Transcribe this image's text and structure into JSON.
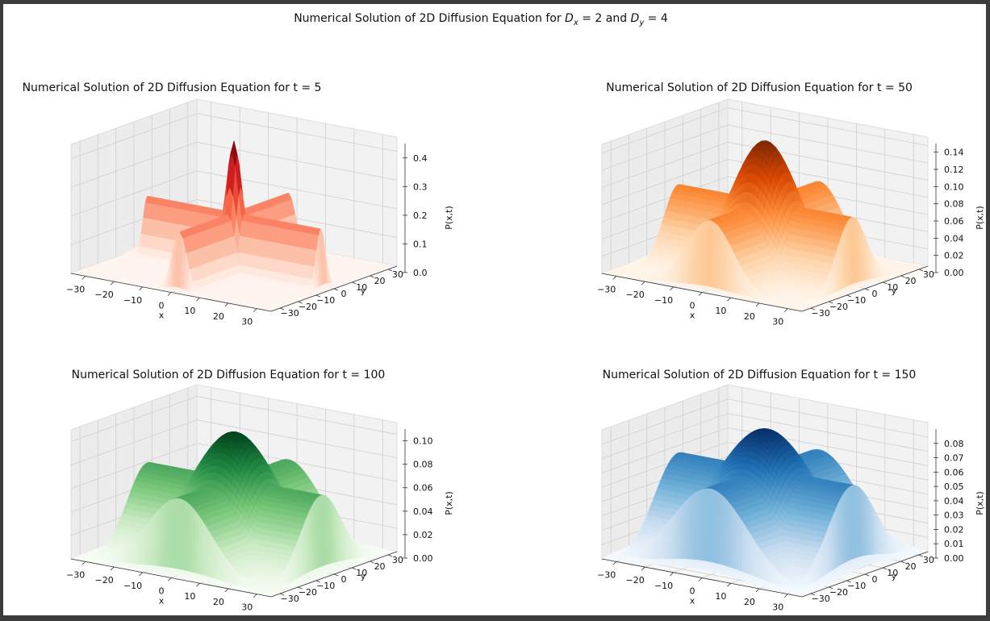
{
  "figure": {
    "suptitle_prefix": "Numerical Solution of 2D Diffusion Equation for ",
    "suptitle_dx_sym": "D",
    "suptitle_dx_sub": "x",
    "suptitle_mid": " = 2 and ",
    "suptitle_dy_sym": "D",
    "suptitle_dy_sub": "y",
    "suptitle_end": " = 4"
  },
  "chart_data": [
    {
      "type": "surface3d",
      "title": "Numerical Solution of 2D Diffusion Equation for t = 5",
      "t": 5,
      "colormap": "Reds",
      "colors": [
        "#fff5f0",
        "#fcbba1",
        "#fb6a4a",
        "#cb181d",
        "#67000d"
      ],
      "xlabel": "x",
      "ylabel": "y",
      "zlabel": "P(x,t)",
      "xlim": [
        -35,
        35
      ],
      "ylim": [
        -35,
        35
      ],
      "zlim": [
        0,
        0.45
      ],
      "xticks": [
        "−30",
        "−20",
        "−10",
        "0",
        "10",
        "20",
        "30"
      ],
      "yticks": [
        "−30",
        "−20",
        "−10",
        "0",
        "10",
        "20",
        "30"
      ],
      "zticks": [
        "0.0",
        "0.1",
        "0.2",
        "0.3",
        "0.4"
      ],
      "peak": 0.45,
      "ridge_height": 0.2,
      "peak_width": 2.5,
      "ridge_width": 2.5
    },
    {
      "type": "surface3d",
      "title": "Numerical Solution of 2D Diffusion Equation for t = 50",
      "t": 50,
      "colormap": "Oranges",
      "colors": [
        "#fff5eb",
        "#fdd0a2",
        "#fd8d3c",
        "#d94801",
        "#7f2704"
      ],
      "xlabel": "x",
      "ylabel": "y",
      "zlabel": "P(x,t)",
      "xlim": [
        -35,
        35
      ],
      "ylim": [
        -35,
        35
      ],
      "zlim": [
        0,
        0.15
      ],
      "xticks": [
        "−30",
        "−20",
        "−10",
        "0",
        "10",
        "20",
        "30"
      ],
      "yticks": [
        "−30",
        "−20",
        "−10",
        "0",
        "10",
        "20",
        "30"
      ],
      "zticks": [
        "0.00",
        "0.02",
        "0.04",
        "0.06",
        "0.08",
        "0.10",
        "0.12",
        "0.14"
      ],
      "peak": 0.15,
      "ridge_height": 0.08,
      "peak_width": 10,
      "ridge_width": 8
    },
    {
      "type": "surface3d",
      "title": "Numerical Solution of 2D Diffusion Equation for t = 100",
      "t": 100,
      "colormap": "Greens",
      "colors": [
        "#f7fcf5",
        "#c7e9c0",
        "#74c476",
        "#238b45",
        "#00441b"
      ],
      "xlabel": "x",
      "ylabel": "y",
      "zlabel": "P(x,t)",
      "xlim": [
        -35,
        35
      ],
      "ylim": [
        -35,
        35
      ],
      "zlim": [
        0,
        0.11
      ],
      "xticks": [
        "−30",
        "−20",
        "−10",
        "0",
        "10",
        "20",
        "30"
      ],
      "yticks": [
        "−30",
        "−20",
        "−10",
        "0",
        "10",
        "20",
        "30"
      ],
      "zticks": [
        "0.00",
        "0.02",
        "0.04",
        "0.06",
        "0.08",
        "0.10"
      ],
      "peak": 0.105,
      "ridge_height": 0.065,
      "peak_width": 13,
      "ridge_width": 11
    },
    {
      "type": "surface3d",
      "title": "Numerical Solution of 2D Diffusion Equation for t = 150",
      "t": 150,
      "colormap": "Blues",
      "colors": [
        "#f7fbff",
        "#c6dbef",
        "#6baed6",
        "#2171b5",
        "#08306b"
      ],
      "xlabel": "x",
      "ylabel": "y",
      "zlabel": "P(x,t)",
      "xlim": [
        -35,
        35
      ],
      "ylim": [
        -35,
        35
      ],
      "zlim": [
        0,
        0.09
      ],
      "xticks": [
        "−30",
        "−20",
        "−10",
        "0",
        "10",
        "20",
        "30"
      ],
      "yticks": [
        "−30",
        "−20",
        "−10",
        "0",
        "10",
        "20",
        "30"
      ],
      "zticks": [
        "0.00",
        "0.01",
        "0.02",
        "0.03",
        "0.04",
        "0.05",
        "0.06",
        "0.07",
        "0.08"
      ],
      "peak": 0.088,
      "ridge_height": 0.06,
      "peak_width": 15,
      "ridge_width": 13
    }
  ]
}
